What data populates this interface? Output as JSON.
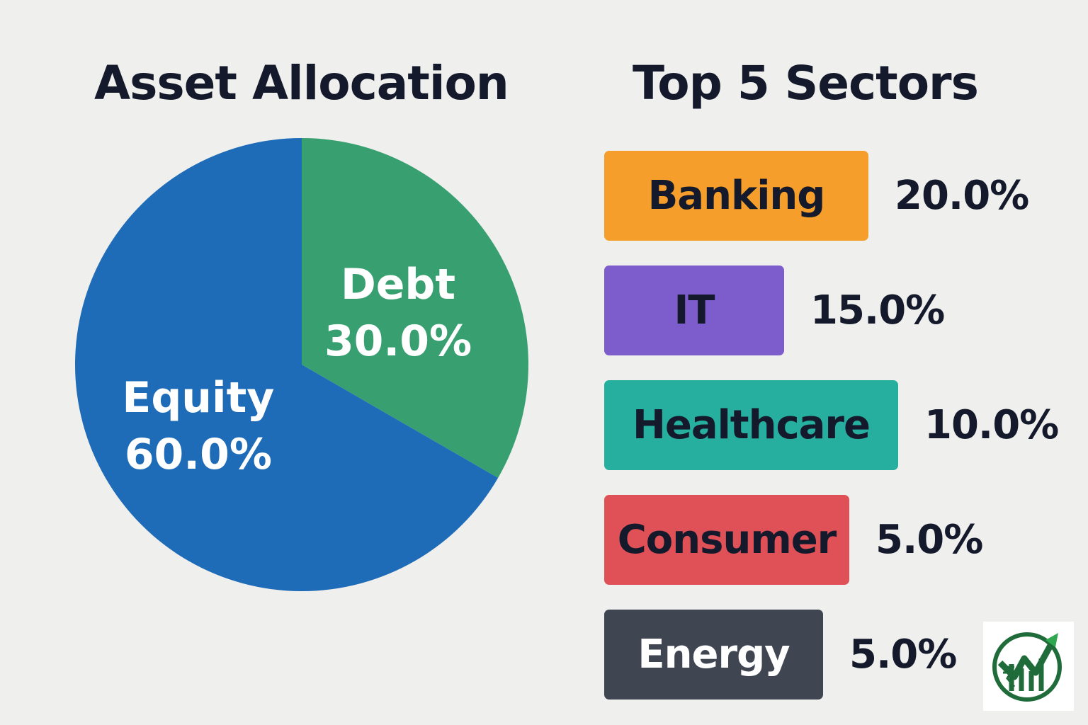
{
  "chart_data": [
    {
      "type": "pie",
      "title": "Asset Allocation",
      "slices": [
        {
          "label": "Debt",
          "value": 30.0,
          "value_label": "30.0%",
          "color": "#38a070"
        },
        {
          "label": "Equity",
          "value": 60.0,
          "value_label": "60.0%",
          "color": "#1e6bb8"
        }
      ],
      "start_angle_deg": 0,
      "direction": "clockwise"
    },
    {
      "type": "bar",
      "orientation": "horizontal",
      "title": "Top 5 Sectors",
      "categories": [
        "Banking",
        "IT",
        "Healthcare",
        "Consumer",
        "Energy"
      ],
      "values": [
        20.0,
        15.0,
        10.0,
        5.0,
        5.0
      ],
      "value_labels": [
        "20.0%",
        "15.0%",
        "10.0%",
        "5.0%",
        "5.0%"
      ],
      "colors": [
        "#f59e2b",
        "#7c5dcb",
        "#26ae9e",
        "#e05157",
        "#3f4652"
      ],
      "label_colors": [
        "#141a2b",
        "#141a2b",
        "#141a2b",
        "#141a2b",
        "#ffffff"
      ]
    }
  ],
  "logo": {
    "icon": "rupee-growth-logo-icon",
    "colors": [
      "#1f6b3a",
      "#2fa84f"
    ]
  }
}
